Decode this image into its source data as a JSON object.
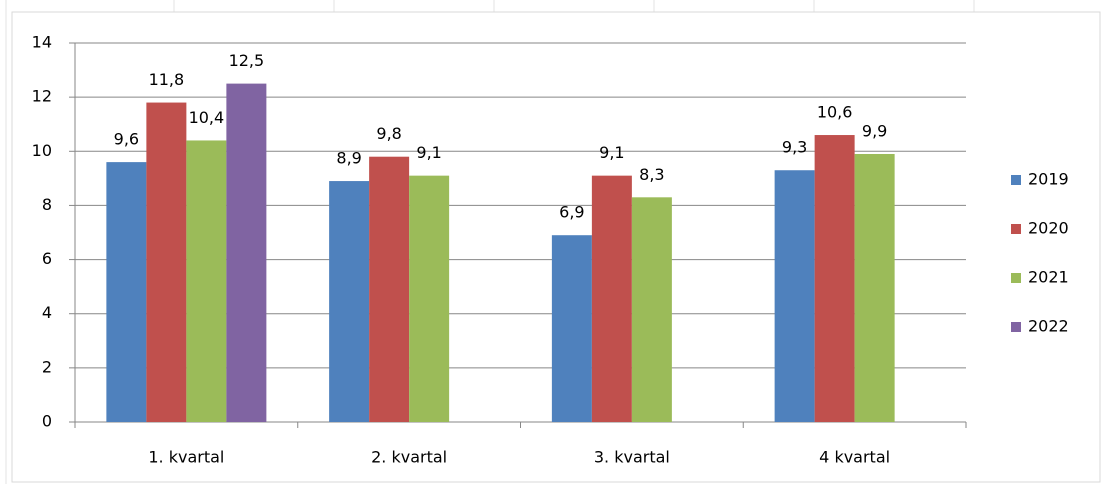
{
  "chart_data": {
    "type": "bar",
    "categories": [
      "1. kvartal",
      "2. kvartal",
      "3. kvartal",
      "4 kvartal"
    ],
    "series": [
      {
        "name": "2019",
        "color": "#4f81bd",
        "values": [
          9.6,
          8.9,
          6.9,
          9.3
        ],
        "value_labels": [
          "9,6",
          "8,9",
          "6,9",
          "9,3"
        ]
      },
      {
        "name": "2020",
        "color": "#c0504d",
        "values": [
          11.8,
          9.8,
          9.1,
          10.6
        ],
        "value_labels": [
          "11,8",
          "9,8",
          "9,1",
          "10,6"
        ]
      },
      {
        "name": "2021",
        "color": "#9bbb59",
        "values": [
          10.4,
          9.1,
          8.3,
          9.9
        ],
        "value_labels": [
          "10,4",
          "9,1",
          "8,3",
          "9,9"
        ]
      },
      {
        "name": "2022",
        "color": "#8064a2",
        "values": [
          12.5,
          null,
          null,
          null
        ],
        "value_labels": [
          "12,5",
          null,
          null,
          null
        ]
      }
    ],
    "ylim": [
      0,
      14
    ],
    "yticks": [
      0,
      2,
      4,
      6,
      8,
      10,
      12,
      14
    ],
    "grid": true,
    "legend": "right"
  }
}
